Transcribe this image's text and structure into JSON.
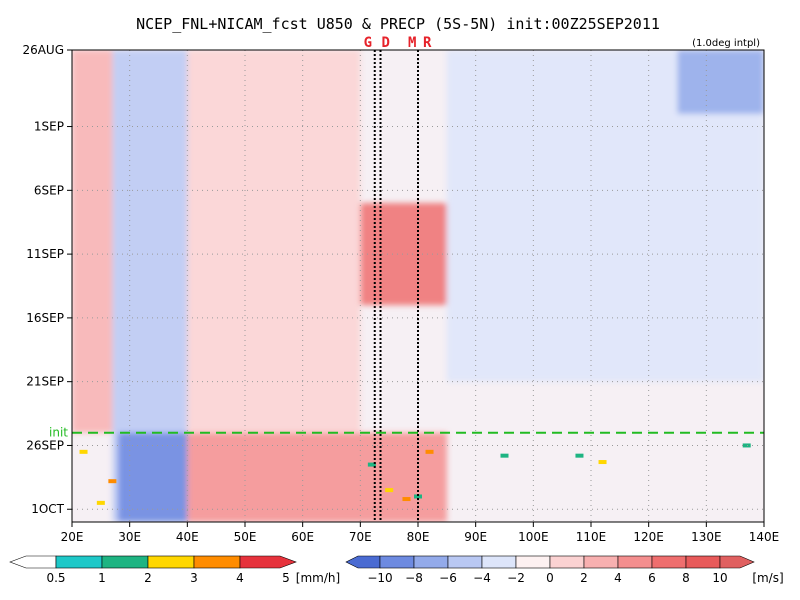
{
  "chart_data": {
    "type": "heatmap",
    "title": "NCEP_FNL+NICAM_fcst U850 & PRECP (5S-5N) init:00Z25SEP2011",
    "subtitle": "(1.0deg intpl)",
    "x_ticks": [
      "20E",
      "30E",
      "40E",
      "50E",
      "60E",
      "70E",
      "80E",
      "90E",
      "100E",
      "110E",
      "120E",
      "130E",
      "140E"
    ],
    "x_tick_values": [
      20,
      30,
      40,
      50,
      60,
      70,
      80,
      90,
      100,
      110,
      120,
      130,
      140
    ],
    "xlim": [
      20,
      140
    ],
    "y_ticks": [
      "26AUG",
      "1SEP",
      "6SEP",
      "11SEP",
      "16SEP",
      "21SEP",
      "26SEP",
      "1OCT"
    ],
    "y_tick_values": [
      0,
      6,
      11,
      16,
      21,
      26,
      31,
      36
    ],
    "ylim": [
      0,
      37
    ],
    "y_reversed": true,
    "grid": true,
    "init_line": {
      "label": "init",
      "day": 30,
      "color": "#22bb22"
    },
    "vertical_lines": [
      {
        "label": "G",
        "lon": 72.5
      },
      {
        "label": "D",
        "lon": 73.5
      },
      {
        "label": "M",
        "lon": 80.0
      },
      {
        "label": "R",
        "lon": 80.0
      }
    ],
    "top_marks": [
      {
        "text": "G",
        "lon": 71.3
      },
      {
        "text": "D",
        "lon": 74.4
      },
      {
        "text": "M",
        "lon": 79.0
      },
      {
        "text": "R",
        "lon": 81.6
      }
    ],
    "u850_field_regions": [
      {
        "lon_min": 27,
        "lon_max": 40,
        "day_min": 0,
        "day_max": 37,
        "u": -5
      },
      {
        "lon_min": 28,
        "lon_max": 40,
        "day_min": 30,
        "day_max": 37,
        "u": -9
      },
      {
        "lon_min": 40,
        "lon_max": 85,
        "day_min": 30,
        "day_max": 37,
        "u": 5
      },
      {
        "lon_min": 70,
        "lon_max": 85,
        "day_min": 12,
        "day_max": 20,
        "u": 6
      },
      {
        "lon_min": 85,
        "lon_max": 140,
        "day_min": 0,
        "day_max": 26,
        "u": -4
      },
      {
        "lon_min": 125,
        "lon_max": 140,
        "day_min": 0,
        "day_max": 5,
        "u": -8
      },
      {
        "lon_min": 20,
        "lon_max": 27,
        "day_min": 0,
        "day_max": 30,
        "u": 2
      },
      {
        "lon_min": 40,
        "lon_max": 70,
        "day_min": 0,
        "day_max": 30,
        "u": 1
      }
    ],
    "precip_points": [
      {
        "lon": 22,
        "day": 31.5,
        "p": 3
      },
      {
        "lon": 27,
        "day": 33.8,
        "p": 4.5
      },
      {
        "lon": 25,
        "day": 35.5,
        "p": 2
      },
      {
        "lon": 72,
        "day": 32.5,
        "p": 1.5
      },
      {
        "lon": 75,
        "day": 34.5,
        "p": 3
      },
      {
        "lon": 78,
        "day": 35.2,
        "p": 4.5
      },
      {
        "lon": 80,
        "day": 35,
        "p": 1.5
      },
      {
        "lon": 82,
        "day": 31.5,
        "p": 4.5
      },
      {
        "lon": 95,
        "day": 31.8,
        "p": 1.5
      },
      {
        "lon": 108,
        "day": 31.8,
        "p": 1.5
      },
      {
        "lon": 112,
        "day": 32.3,
        "p": 3
      },
      {
        "lon": 137,
        "day": 31,
        "p": 1.5
      }
    ],
    "precip_colorbar": {
      "unit": "[mm/h]",
      "labels": [
        "0.5",
        "1",
        "2",
        "3",
        "4",
        "5"
      ],
      "colors": [
        "#ffffff",
        "#1ec8c8",
        "#1eb482",
        "#ffd700",
        "#ff8c00",
        "#e6323c"
      ]
    },
    "u850_colorbar": {
      "unit": "[m/s]",
      "labels": [
        "−10",
        "−8",
        "−6",
        "−4",
        "−2",
        "0",
        "2",
        "4",
        "6",
        "8",
        "10"
      ],
      "colors": [
        "#4a6bd2",
        "#6d8ae0",
        "#93aaea",
        "#b9c8f3",
        "#dde5fa",
        "#fdf1f1",
        "#fbd2d2",
        "#f8b0b0",
        "#f48e8e",
        "#ef6e6e",
        "#e85a5a",
        "#e06060"
      ]
    }
  }
}
